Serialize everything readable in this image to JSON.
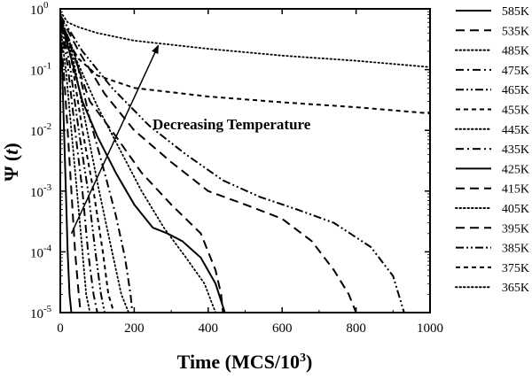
{
  "chart_data": {
    "type": "line",
    "xlabel_main": "Time (MCS/10",
    "xlabel_sup": "3",
    "xlabel_close": ")",
    "ylabel_main": "Ψ (",
    "ylabel_var": "t",
    "ylabel_close": ")",
    "xlim": [
      0,
      1000
    ],
    "ylim": [
      1e-05,
      1
    ],
    "yscale": "log",
    "x_ticks": [
      0,
      200,
      400,
      600,
      800,
      1000
    ],
    "y_ticks": [
      {
        "value": 1e-05,
        "base": "10",
        "exp": "-5"
      },
      {
        "value": 0.0001,
        "base": "10",
        "exp": "-4"
      },
      {
        "value": 0.001,
        "base": "10",
        "exp": "-3"
      },
      {
        "value": 0.01,
        "base": "10",
        "exp": "-2"
      },
      {
        "value": 0.1,
        "base": "10",
        "exp": "-1"
      },
      {
        "value": 1,
        "base": "10",
        "exp": "0"
      }
    ],
    "annotation": {
      "text": "Decreasing Temperature",
      "arrow_from": [
        30,
        0.0002
      ],
      "arrow_to": [
        265,
        0.25
      ]
    },
    "legend_position": "right-outside",
    "series": [
      {
        "name": "585K",
        "dash": "solid",
        "points": [
          [
            0,
            0.4
          ],
          [
            5,
            0.1
          ],
          [
            10,
            0.01
          ],
          [
            15,
            0.001
          ],
          [
            20,
            0.0001
          ],
          [
            25,
            2e-05
          ],
          [
            30,
            1e-05
          ]
        ]
      },
      {
        "name": "535K",
        "dash": "longdash",
        "points": [
          [
            0,
            0.45
          ],
          [
            10,
            0.08
          ],
          [
            20,
            0.01
          ],
          [
            30,
            0.001
          ],
          [
            40,
            0.0001
          ],
          [
            50,
            2e-05
          ],
          [
            55,
            1e-05
          ]
        ]
      },
      {
        "name": "485K",
        "dash": "dot",
        "points": [
          [
            0,
            0.5
          ],
          [
            15,
            0.1
          ],
          [
            30,
            0.01
          ],
          [
            45,
            0.001
          ],
          [
            60,
            0.0001
          ],
          [
            70,
            2e-05
          ],
          [
            80,
            1e-05
          ]
        ]
      },
      {
        "name": "475K",
        "dash": "dashdot",
        "points": [
          [
            0,
            0.55
          ],
          [
            20,
            0.12
          ],
          [
            40,
            0.01
          ],
          [
            60,
            0.001
          ],
          [
            75,
            0.0001
          ],
          [
            90,
            2e-05
          ],
          [
            100,
            1e-05
          ]
        ]
      },
      {
        "name": "465K",
        "dash": "dashdotdot",
        "points": [
          [
            0,
            0.6
          ],
          [
            25,
            0.13
          ],
          [
            50,
            0.01
          ],
          [
            75,
            0.001
          ],
          [
            95,
            0.0001
          ],
          [
            110,
            2e-05
          ],
          [
            120,
            1e-05
          ]
        ]
      },
      {
        "name": "455K",
        "dash": "shortdash",
        "points": [
          [
            0,
            0.6
          ],
          [
            30,
            0.15
          ],
          [
            60,
            0.01
          ],
          [
            90,
            0.001
          ],
          [
            115,
            0.0001
          ],
          [
            130,
            2e-05
          ],
          [
            145,
            1e-05
          ]
        ]
      },
      {
        "name": "445K",
        "dash": "dot",
        "points": [
          [
            0,
            0.65
          ],
          [
            35,
            0.15
          ],
          [
            70,
            0.012
          ],
          [
            105,
            0.001
          ],
          [
            140,
            0.0001
          ],
          [
            165,
            2e-05
          ],
          [
            185,
            1e-05
          ]
        ]
      },
      {
        "name": "435K",
        "dash": "dashdot",
        "points": [
          [
            0,
            0.7
          ],
          [
            40,
            0.18
          ],
          [
            80,
            0.015
          ],
          [
            120,
            0.002
          ],
          [
            150,
            0.0004
          ],
          [
            175,
            8e-05
          ],
          [
            190,
            2e-05
          ],
          [
            195,
            1e-05
          ]
        ]
      },
      {
        "name": "425K",
        "dash": "solid",
        "points": [
          [
            0,
            0.7
          ],
          [
            30,
            0.15
          ],
          [
            60,
            0.03
          ],
          [
            100,
            0.008
          ],
          [
            150,
            0.002
          ],
          [
            200,
            0.0006
          ],
          [
            250,
            0.00025
          ],
          [
            290,
            0.0002
          ],
          [
            330,
            0.00015
          ],
          [
            380,
            8e-05
          ],
          [
            420,
            3e-05
          ],
          [
            445,
            1e-05
          ],
          [
            455,
            1e-05
          ]
        ]
      },
      {
        "name": "415K",
        "dash": "longdash",
        "points": [
          [
            0,
            0.72
          ],
          [
            40,
            0.15
          ],
          [
            80,
            0.03
          ],
          [
            150,
            0.008
          ],
          [
            220,
            0.002
          ],
          [
            300,
            0.0006
          ],
          [
            380,
            0.0002
          ],
          [
            420,
            5e-05
          ],
          [
            435,
            2e-05
          ],
          [
            440,
            1e-05
          ]
        ]
      },
      {
        "name": "405K",
        "dash": "dot",
        "points": [
          [
            0,
            0.74
          ],
          [
            40,
            0.16
          ],
          [
            100,
            0.025
          ],
          [
            160,
            0.005
          ],
          [
            220,
            0.001
          ],
          [
            280,
            0.00025
          ],
          [
            340,
            8e-05
          ],
          [
            390,
            3e-05
          ],
          [
            420,
            1e-05
          ]
        ]
      },
      {
        "name": "395K",
        "dash": "longdash",
        "points": [
          [
            0,
            0.76
          ],
          [
            50,
            0.2
          ],
          [
            120,
            0.04
          ],
          [
            200,
            0.01
          ],
          [
            300,
            0.003
          ],
          [
            400,
            0.001
          ],
          [
            500,
            0.0006
          ],
          [
            600,
            0.00035
          ],
          [
            680,
            0.00015
          ],
          [
            740,
            5e-05
          ],
          [
            780,
            2e-05
          ],
          [
            800,
            1e-05
          ]
        ]
      },
      {
        "name": "385K",
        "dash": "dashdotdot",
        "points": [
          [
            0,
            0.78
          ],
          [
            60,
            0.2
          ],
          [
            140,
            0.05
          ],
          [
            240,
            0.012
          ],
          [
            340,
            0.004
          ],
          [
            440,
            0.0015
          ],
          [
            540,
            0.0008
          ],
          [
            640,
            0.0005
          ],
          [
            740,
            0.0003
          ],
          [
            840,
            0.00012
          ],
          [
            900,
            4e-05
          ],
          [
            930,
            1e-05
          ]
        ]
      },
      {
        "name": "375K",
        "dash": "shortdash",
        "points": [
          [
            0,
            0.8
          ],
          [
            20,
            0.3
          ],
          [
            50,
            0.15
          ],
          [
            100,
            0.08
          ],
          [
            200,
            0.05
          ],
          [
            400,
            0.036
          ],
          [
            600,
            0.029
          ],
          [
            800,
            0.024
          ],
          [
            1000,
            0.019
          ]
        ]
      },
      {
        "name": "365K",
        "dash": "dot",
        "points": [
          [
            0,
            0.9
          ],
          [
            20,
            0.6
          ],
          [
            50,
            0.5
          ],
          [
            100,
            0.4
          ],
          [
            200,
            0.3
          ],
          [
            400,
            0.22
          ],
          [
            600,
            0.17
          ],
          [
            800,
            0.14
          ],
          [
            1000,
            0.11
          ]
        ]
      }
    ]
  }
}
